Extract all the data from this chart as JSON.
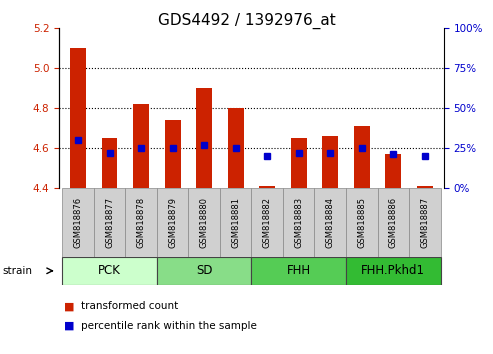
{
  "title": "GDS4492 / 1392976_at",
  "samples": [
    "GSM818876",
    "GSM818877",
    "GSM818878",
    "GSM818879",
    "GSM818880",
    "GSM818881",
    "GSM818882",
    "GSM818883",
    "GSM818884",
    "GSM818885",
    "GSM818886",
    "GSM818887"
  ],
  "transformed_count": [
    5.1,
    4.65,
    4.82,
    4.74,
    4.9,
    4.8,
    4.41,
    4.65,
    4.66,
    4.71,
    4.57,
    4.41
  ],
  "percentile_rank": [
    30,
    22,
    25,
    25,
    27,
    25,
    20,
    22,
    22,
    25,
    21,
    20
  ],
  "ylim_left": [
    4.4,
    5.2
  ],
  "ylim_right": [
    0,
    100
  ],
  "yticks_left": [
    4.4,
    4.6,
    4.8,
    5.0,
    5.2
  ],
  "yticks_right": [
    0,
    25,
    50,
    75,
    100
  ],
  "groups": [
    {
      "label": "PCK",
      "indices": [
        0,
        1,
        2
      ],
      "color": "#ccffcc"
    },
    {
      "label": "SD",
      "indices": [
        3,
        4,
        5
      ],
      "color": "#88dd88"
    },
    {
      "label": "FHH",
      "indices": [
        6,
        7,
        8
      ],
      "color": "#55cc55"
    },
    {
      "label": "FHH.Pkhd1",
      "indices": [
        9,
        10,
        11
      ],
      "color": "#33bb33"
    }
  ],
  "bar_color": "#cc2200",
  "dot_color": "#0000cc",
  "bar_bottom": 4.4,
  "bar_width": 0.5,
  "gridline_color": "#000000",
  "axis_left_color": "#cc2200",
  "axis_right_color": "#0000cc",
  "xlabel_bg": "#d0d0d0",
  "strain_label": "strain",
  "legend_red": "transformed count",
  "legend_blue": "percentile rank within the sample",
  "title_fontsize": 11,
  "tick_fontsize": 7.5,
  "sample_fontsize": 6.0,
  "group_fontsize": 8.5,
  "legend_fontsize": 7.5
}
